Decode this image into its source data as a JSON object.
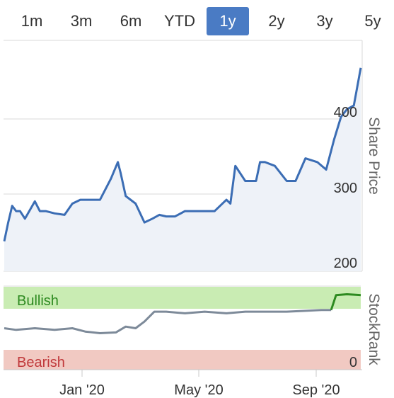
{
  "range_tabs": [
    {
      "label": "1m"
    },
    {
      "label": "3m"
    },
    {
      "label": "6m"
    },
    {
      "label": "YTD"
    },
    {
      "label": "1y",
      "active": true
    },
    {
      "label": "2y"
    },
    {
      "label": "3y"
    },
    {
      "label": "5y"
    }
  ],
  "colors": {
    "accent": "#4a7bc4",
    "line": "#3b6db4",
    "bullish_band": "#c9ecb3",
    "bearish_band": "#f1c9c2",
    "bullish_text": "#2d8a20",
    "bearish_text": "#c0393b",
    "stockrank_line": "#7d8a99",
    "stockrank_bullish_line": "#2d8a20"
  },
  "chart_data": [
    {
      "type": "line",
      "ylabel": "Share Price",
      "ylim": [
        200,
        470
      ],
      "yticks": [
        200,
        300,
        400
      ],
      "xticks": [
        "Jan '20",
        "May '20",
        "Sep '20"
      ],
      "series": [
        {
          "x": [
            "2019-10-20",
            "2019-10-24",
            "2019-10-28",
            "2019-11-01",
            "2019-11-05",
            "2019-11-10",
            "2019-11-20",
            "2019-11-25",
            "2019-12-01",
            "2019-12-10",
            "2019-12-20",
            "2019-12-28",
            "2020-01-05",
            "2020-01-15",
            "2020-01-25",
            "2020-02-05",
            "2020-02-12",
            "2020-02-15",
            "2020-02-20",
            "2020-03-01",
            "2020-03-10",
            "2020-03-18",
            "2020-03-25",
            "2020-04-01",
            "2020-04-10",
            "2020-04-20",
            "2020-05-01",
            "2020-05-10",
            "2020-05-20",
            "2020-06-01",
            "2020-06-05",
            "2020-06-10",
            "2020-06-20",
            "2020-07-01",
            "2020-07-05",
            "2020-07-10",
            "2020-07-20",
            "2020-08-01",
            "2020-08-10",
            "2020-08-20",
            "2020-09-01",
            "2020-09-10",
            "2020-09-18",
            "2020-09-25",
            "2020-10-01",
            "2020-10-08",
            "2020-10-15"
          ],
          "values": [
            235,
            260,
            282,
            275,
            275,
            265,
            288,
            275,
            275,
            272,
            270,
            285,
            290,
            290,
            290,
            318,
            340,
            325,
            295,
            285,
            260,
            265,
            270,
            268,
            268,
            275,
            275,
            275,
            275,
            290,
            285,
            335,
            315,
            315,
            340,
            340,
            335,
            315,
            315,
            345,
            340,
            330,
            370,
            400,
            410,
            415,
            465
          ]
        }
      ]
    },
    {
      "type": "line",
      "ylabel": "StockRank",
      "ylim": [
        0,
        100
      ],
      "bands": [
        {
          "label": "Bullish",
          "from": 75,
          "to": 100
        },
        {
          "label": "Bearish",
          "from": 0,
          "to": 20
        }
      ],
      "tick_label": "0",
      "xticks": [
        "Jan '20",
        "May '20",
        "Sep '20"
      ],
      "series": [
        {
          "x": [
            "2019-10-20",
            "2019-11-01",
            "2019-11-20",
            "2019-12-10",
            "2019-12-28",
            "2020-01-10",
            "2020-01-25",
            "2020-02-10",
            "2020-02-20",
            "2020-03-01",
            "2020-03-10",
            "2020-03-20",
            "2020-04-01",
            "2020-04-20",
            "2020-05-10",
            "2020-06-01",
            "2020-06-20",
            "2020-07-10",
            "2020-08-01",
            "2020-08-20",
            "2020-09-05",
            "2020-09-15",
            "2020-09-20",
            "2020-10-01",
            "2020-10-15"
          ],
          "values": [
            50,
            48,
            50,
            48,
            50,
            46,
            44,
            45,
            52,
            50,
            58,
            70,
            70,
            68,
            70,
            68,
            70,
            70,
            70,
            71,
            72,
            72,
            90,
            91,
            90
          ]
        }
      ]
    }
  ]
}
